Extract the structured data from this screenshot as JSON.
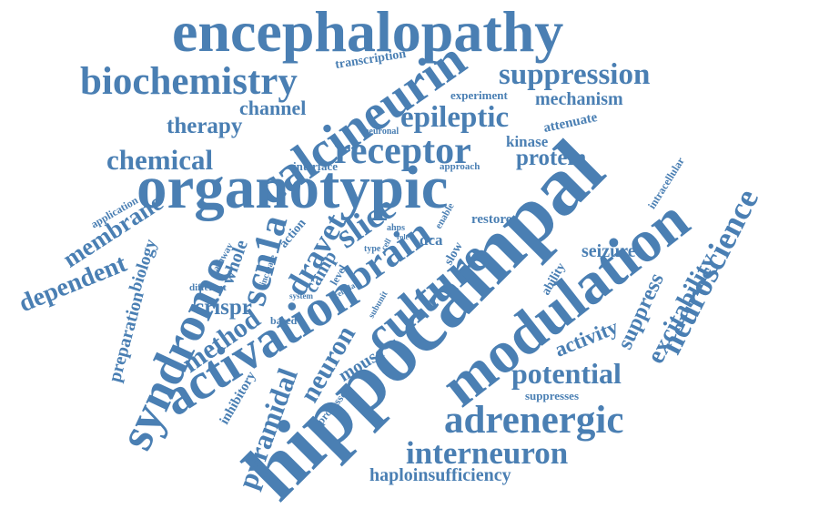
{
  "cloud": {
    "color": "#4a7fb3",
    "words": [
      "encephalopathy",
      "biochemistry",
      "calcineurin",
      "suppression",
      "transcription",
      "experiment",
      "mechanism",
      "channel",
      "therapy",
      "epileptic",
      "attenuate",
      "neuronal",
      "kinase",
      "receptor",
      "chemical",
      "protein",
      "interface",
      "approach",
      "intracellular",
      "organotypic",
      "hippocampal",
      "neuroscience",
      "application",
      "membrane",
      "syndrome",
      "biology",
      "scn1a",
      "dravet",
      "whole",
      "pathway",
      "increase",
      "action",
      "camp",
      "slice",
      "ahps",
      "enable",
      "restore",
      "brain",
      "dca",
      "type",
      "cell",
      "role",
      "level",
      "culture",
      "slow",
      "modulation",
      "seizure",
      "dependent",
      "different",
      "system",
      "cellular",
      "subunit",
      "ability",
      "excitability",
      "suppress",
      "preparation",
      "crispr",
      "method",
      "based",
      "activation",
      "neuron",
      "activity",
      "mouse",
      "pyramidal",
      "inhibitory",
      "processes",
      "potential",
      "suppresses",
      "adrenergic",
      "interneuron",
      "haploinsufficiency"
    ]
  }
}
